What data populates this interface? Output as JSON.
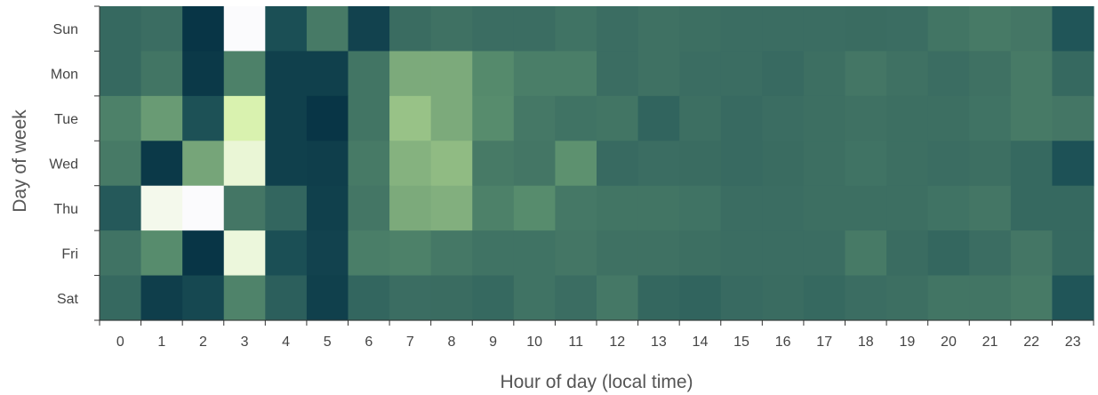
{
  "chart_data": {
    "type": "heatmap",
    "title": "",
    "xlabel": "Hour of day (local time)",
    "ylabel": "Day of week",
    "x_categories": [
      "0",
      "1",
      "2",
      "3",
      "4",
      "5",
      "6",
      "7",
      "8",
      "9",
      "10",
      "11",
      "12",
      "13",
      "14",
      "15",
      "16",
      "17",
      "18",
      "19",
      "20",
      "21",
      "22",
      "23"
    ],
    "y_categories": [
      "Sun",
      "Mon",
      "Tue",
      "Wed",
      "Thu",
      "Fri",
      "Sat"
    ],
    "value_scale": "relative activity (0 = darkest navy, 1 = lightest)",
    "color_scale": [
      "#083546",
      "#1f5458",
      "#3c6e62",
      "#578c6d",
      "#8ab681",
      "#d2f0a0",
      "#fbfbfd"
    ],
    "values": [
      [
        0.3,
        0.33,
        0.0,
        1.0,
        0.14,
        0.4,
        0.07,
        0.32,
        0.35,
        0.33,
        0.33,
        0.36,
        0.33,
        0.35,
        0.34,
        0.33,
        0.33,
        0.33,
        0.32,
        0.33,
        0.37,
        0.4,
        0.38,
        0.17
      ],
      [
        0.3,
        0.37,
        0.02,
        0.44,
        0.06,
        0.06,
        0.37,
        0.62,
        0.62,
        0.49,
        0.42,
        0.42,
        0.33,
        0.35,
        0.33,
        0.33,
        0.31,
        0.34,
        0.38,
        0.35,
        0.33,
        0.35,
        0.4,
        0.3
      ],
      [
        0.44,
        0.56,
        0.15,
        0.86,
        0.06,
        0.0,
        0.37,
        0.7,
        0.62,
        0.5,
        0.39,
        0.36,
        0.37,
        0.27,
        0.34,
        0.31,
        0.33,
        0.34,
        0.35,
        0.34,
        0.34,
        0.36,
        0.4,
        0.38
      ],
      [
        0.4,
        0.02,
        0.6,
        0.93,
        0.06,
        0.05,
        0.4,
        0.65,
        0.68,
        0.4,
        0.38,
        0.52,
        0.31,
        0.33,
        0.32,
        0.31,
        0.32,
        0.34,
        0.36,
        0.34,
        0.33,
        0.34,
        0.3,
        0.15
      ],
      [
        0.2,
        0.97,
        1.0,
        0.38,
        0.28,
        0.06,
        0.38,
        0.62,
        0.64,
        0.44,
        0.5,
        0.39,
        0.37,
        0.37,
        0.36,
        0.33,
        0.33,
        0.34,
        0.34,
        0.34,
        0.36,
        0.38,
        0.3,
        0.3
      ],
      [
        0.36,
        0.5,
        0.0,
        0.94,
        0.14,
        0.07,
        0.42,
        0.44,
        0.39,
        0.36,
        0.36,
        0.38,
        0.35,
        0.35,
        0.34,
        0.33,
        0.33,
        0.33,
        0.4,
        0.32,
        0.29,
        0.33,
        0.38,
        0.3
      ],
      [
        0.3,
        0.05,
        0.1,
        0.45,
        0.24,
        0.06,
        0.28,
        0.33,
        0.32,
        0.3,
        0.36,
        0.33,
        0.39,
        0.29,
        0.27,
        0.31,
        0.32,
        0.3,
        0.33,
        0.34,
        0.37,
        0.37,
        0.4,
        0.17
      ]
    ]
  }
}
